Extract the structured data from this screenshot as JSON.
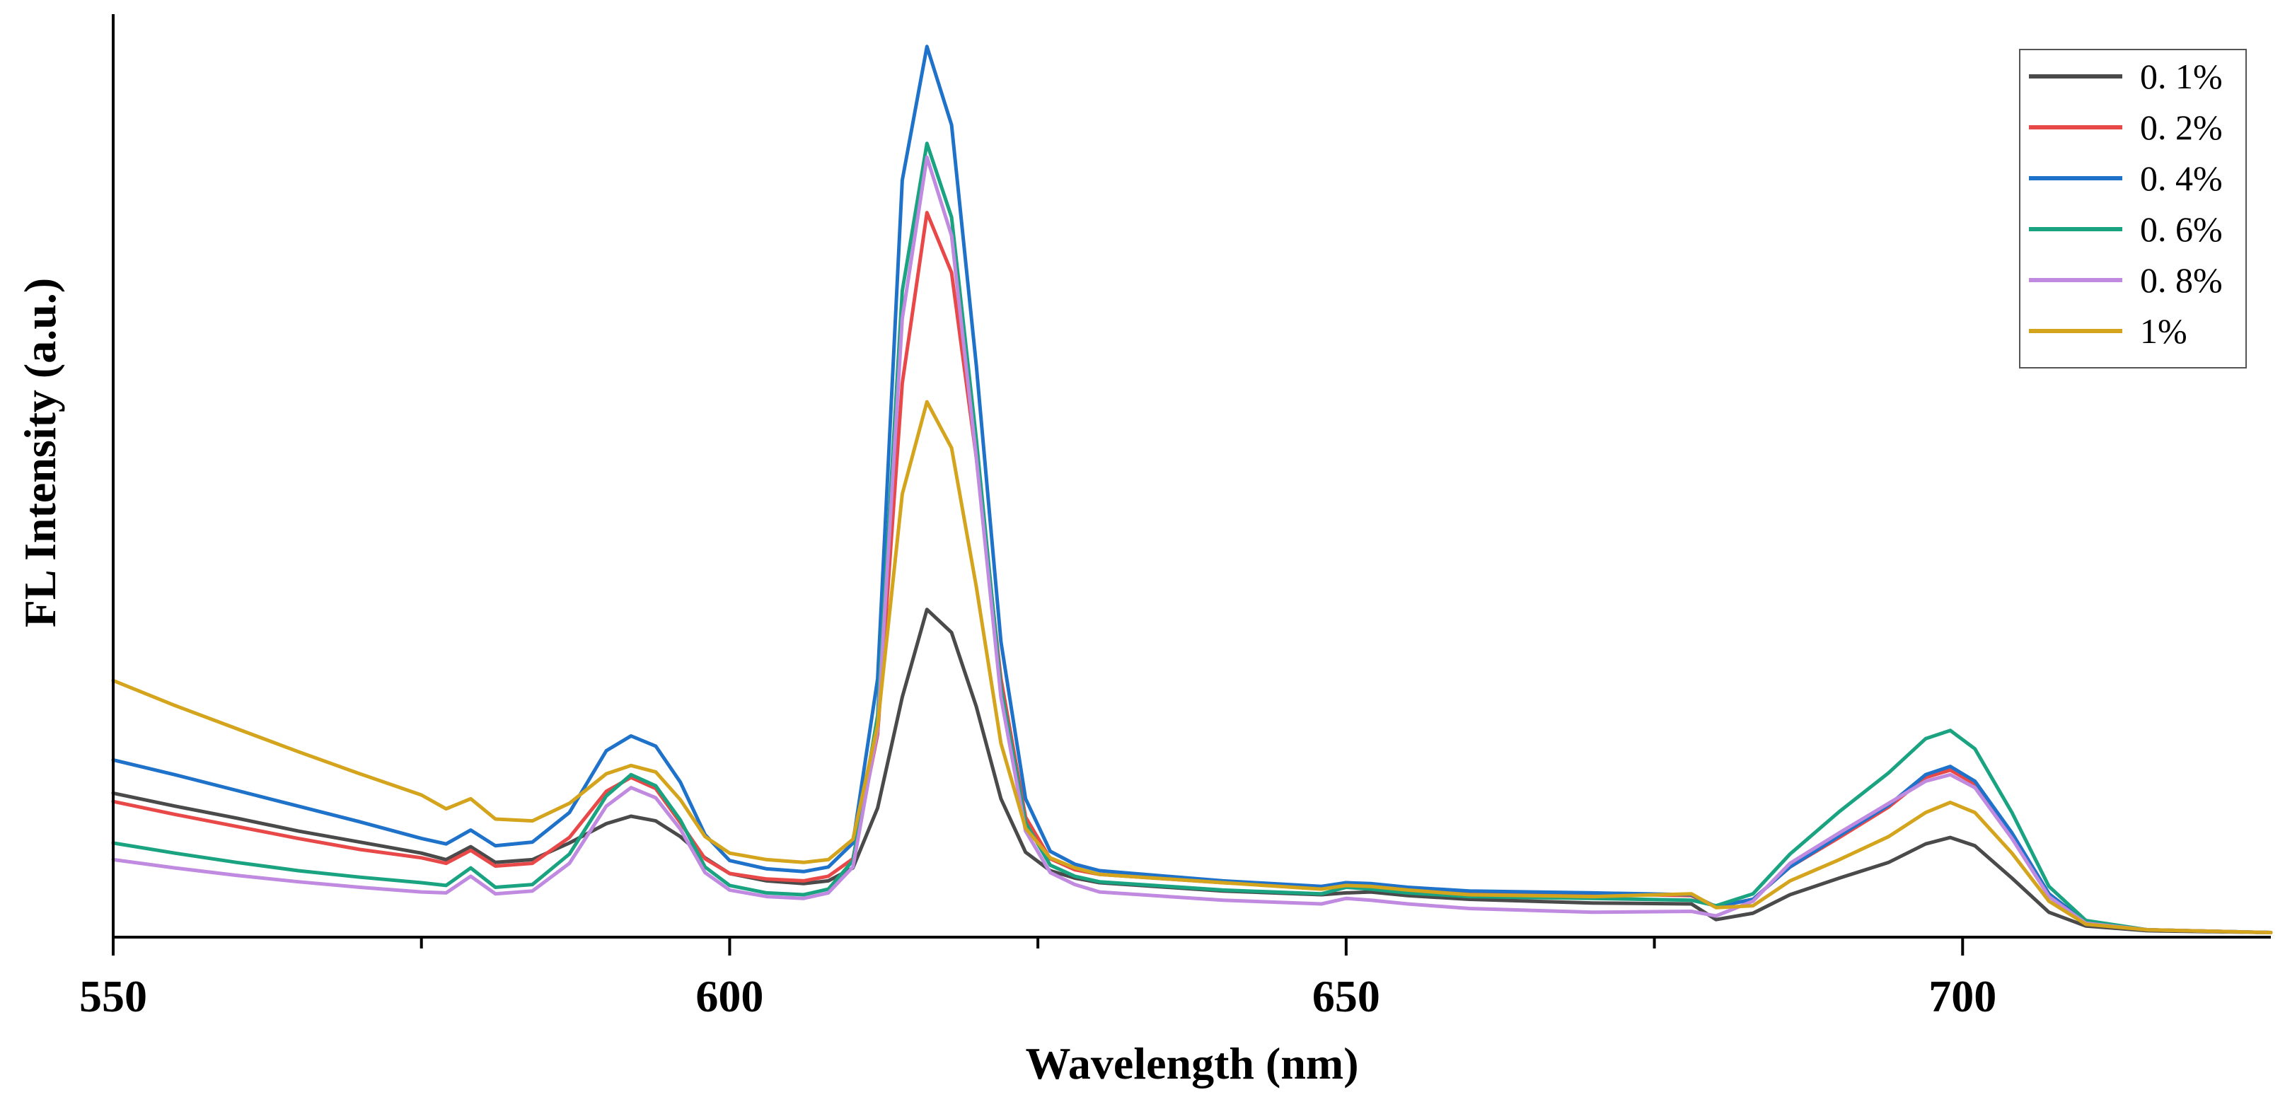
{
  "chart_data": {
    "type": "line",
    "title": "",
    "xlabel": "Wavelength (nm)",
    "ylabel": "FL Intensity (a.u.)",
    "xlim": [
      550,
      725
    ],
    "ylim": [
      0,
      100
    ],
    "xticks": [
      550,
      600,
      650,
      700
    ],
    "xtick_labels": [
      "550",
      "600",
      "650",
      "700"
    ],
    "minor_xticks": [
      575,
      625,
      675
    ],
    "grid": false,
    "legend_position": "top-right",
    "series": [
      {
        "name": "0. 1%",
        "color": "#4a4a4a",
        "points": [
          [
            550,
            15.6
          ],
          [
            555,
            14.2
          ],
          [
            560,
            12.9
          ],
          [
            565,
            11.5
          ],
          [
            570,
            10.3
          ],
          [
            575,
            9.1
          ],
          [
            577,
            8.4
          ],
          [
            579,
            9.8
          ],
          [
            581,
            8.1
          ],
          [
            584,
            8.4
          ],
          [
            587,
            10.2
          ],
          [
            590,
            12.3
          ],
          [
            592,
            13.1
          ],
          [
            594,
            12.6
          ],
          [
            596,
            10.9
          ],
          [
            598,
            8.6
          ],
          [
            600,
            6.9
          ],
          [
            603,
            6.1
          ],
          [
            606,
            5.8
          ],
          [
            608,
            6.1
          ],
          [
            610,
            7.5
          ],
          [
            612,
            14
          ],
          [
            614,
            26
          ],
          [
            616,
            35.5
          ],
          [
            618,
            33
          ],
          [
            620,
            25
          ],
          [
            622,
            15
          ],
          [
            624,
            9.2
          ],
          [
            626,
            7.2
          ],
          [
            628,
            6.4
          ],
          [
            630,
            5.9
          ],
          [
            640,
            5
          ],
          [
            648,
            4.6
          ],
          [
            650,
            4.8
          ],
          [
            652,
            4.9
          ],
          [
            655,
            4.5
          ],
          [
            660,
            4.1
          ],
          [
            670,
            3.7
          ],
          [
            678,
            3.6
          ],
          [
            680,
            1.9
          ],
          [
            683,
            2.6
          ],
          [
            686,
            4.6
          ],
          [
            690,
            6.4
          ],
          [
            694,
            8.1
          ],
          [
            697,
            10.1
          ],
          [
            699,
            10.8
          ],
          [
            701,
            9.9
          ],
          [
            704,
            6.4
          ],
          [
            707,
            2.7
          ],
          [
            710,
            1.2
          ],
          [
            715,
            0.7
          ],
          [
            725,
            0.5
          ]
        ]
      },
      {
        "name": "0. 2%",
        "color": "#e94848",
        "points": [
          [
            550,
            14.7
          ],
          [
            555,
            13.3
          ],
          [
            560,
            12
          ],
          [
            565,
            10.7
          ],
          [
            570,
            9.5
          ],
          [
            575,
            8.6
          ],
          [
            577,
            8
          ],
          [
            579,
            9.4
          ],
          [
            581,
            7.7
          ],
          [
            584,
            8
          ],
          [
            587,
            10.8
          ],
          [
            590,
            15.8
          ],
          [
            592,
            17.3
          ],
          [
            594,
            16.1
          ],
          [
            596,
            12.4
          ],
          [
            598,
            8.5
          ],
          [
            600,
            6.9
          ],
          [
            603,
            6.3
          ],
          [
            606,
            6.1
          ],
          [
            608,
            6.6
          ],
          [
            610,
            8.5
          ],
          [
            612,
            22
          ],
          [
            614,
            60
          ],
          [
            616,
            78.5
          ],
          [
            618,
            72
          ],
          [
            620,
            52
          ],
          [
            622,
            28
          ],
          [
            624,
            13
          ],
          [
            626,
            8.5
          ],
          [
            628,
            7.3
          ],
          [
            630,
            6.8
          ],
          [
            640,
            5.9
          ],
          [
            648,
            5.4
          ],
          [
            650,
            5.9
          ],
          [
            652,
            5.7
          ],
          [
            655,
            5.3
          ],
          [
            660,
            4.9
          ],
          [
            670,
            4.7
          ],
          [
            678,
            4.5
          ],
          [
            680,
            3.3
          ],
          [
            683,
            4.1
          ],
          [
            686,
            7.6
          ],
          [
            690,
            10.8
          ],
          [
            694,
            14.1
          ],
          [
            697,
            17.3
          ],
          [
            699,
            18.1
          ],
          [
            701,
            16.6
          ],
          [
            704,
            11.2
          ],
          [
            707,
            4.7
          ],
          [
            710,
            1.6
          ],
          [
            715,
            0.8
          ],
          [
            725,
            0.5
          ]
        ]
      },
      {
        "name": "0. 4%",
        "color": "#1f72c9",
        "points": [
          [
            550,
            19.2
          ],
          [
            555,
            17.6
          ],
          [
            560,
            15.9
          ],
          [
            565,
            14.2
          ],
          [
            570,
            12.5
          ],
          [
            575,
            10.7
          ],
          [
            577,
            10.1
          ],
          [
            579,
            11.6
          ],
          [
            581,
            9.9
          ],
          [
            584,
            10.3
          ],
          [
            587,
            13.5
          ],
          [
            590,
            20.2
          ],
          [
            592,
            21.8
          ],
          [
            594,
            20.7
          ],
          [
            596,
            16.8
          ],
          [
            598,
            11.1
          ],
          [
            600,
            8.3
          ],
          [
            603,
            7.4
          ],
          [
            606,
            7.1
          ],
          [
            608,
            7.6
          ],
          [
            610,
            10.2
          ],
          [
            612,
            28
          ],
          [
            614,
            82
          ],
          [
            616,
            96.5
          ],
          [
            618,
            88
          ],
          [
            620,
            62
          ],
          [
            622,
            32
          ],
          [
            624,
            15
          ],
          [
            626,
            9.3
          ],
          [
            628,
            7.9
          ],
          [
            630,
            7.2
          ],
          [
            640,
            6.1
          ],
          [
            648,
            5.5
          ],
          [
            650,
            5.9
          ],
          [
            652,
            5.8
          ],
          [
            655,
            5.4
          ],
          [
            660,
            5
          ],
          [
            670,
            4.8
          ],
          [
            678,
            4.6
          ],
          [
            680,
            3.3
          ],
          [
            683,
            4.1
          ],
          [
            686,
            7.6
          ],
          [
            690,
            11
          ],
          [
            694,
            14.3
          ],
          [
            697,
            17.6
          ],
          [
            699,
            18.5
          ],
          [
            701,
            16.9
          ],
          [
            704,
            11.3
          ],
          [
            707,
            4.7
          ],
          [
            710,
            1.6
          ],
          [
            715,
            0.8
          ],
          [
            725,
            0.5
          ]
        ]
      },
      {
        "name": "0. 6%",
        "color": "#1aa381",
        "points": [
          [
            550,
            10.2
          ],
          [
            555,
            9.1
          ],
          [
            560,
            8.1
          ],
          [
            565,
            7.2
          ],
          [
            570,
            6.5
          ],
          [
            575,
            5.9
          ],
          [
            577,
            5.6
          ],
          [
            579,
            7.5
          ],
          [
            581,
            5.4
          ],
          [
            584,
            5.7
          ],
          [
            587,
            9
          ],
          [
            590,
            15.3
          ],
          [
            592,
            17.6
          ],
          [
            594,
            16.4
          ],
          [
            596,
            12.7
          ],
          [
            598,
            7.6
          ],
          [
            600,
            5.6
          ],
          [
            603,
            4.8
          ],
          [
            606,
            4.6
          ],
          [
            608,
            5.2
          ],
          [
            610,
            8.3
          ],
          [
            612,
            24
          ],
          [
            614,
            70
          ],
          [
            616,
            86
          ],
          [
            618,
            78
          ],
          [
            620,
            54
          ],
          [
            622,
            27
          ],
          [
            624,
            12.4
          ],
          [
            626,
            7.8
          ],
          [
            628,
            6.6
          ],
          [
            630,
            6
          ],
          [
            640,
            5.1
          ],
          [
            648,
            4.7
          ],
          [
            650,
            5.4
          ],
          [
            652,
            5.2
          ],
          [
            655,
            4.8
          ],
          [
            660,
            4.4
          ],
          [
            670,
            4.2
          ],
          [
            678,
            4
          ],
          [
            680,
            3.4
          ],
          [
            683,
            4.7
          ],
          [
            686,
            9
          ],
          [
            690,
            13.6
          ],
          [
            694,
            17.8
          ],
          [
            697,
            21.5
          ],
          [
            699,
            22.4
          ],
          [
            701,
            20.4
          ],
          [
            704,
            13.5
          ],
          [
            707,
            5.5
          ],
          [
            710,
            1.8
          ],
          [
            715,
            0.8
          ],
          [
            725,
            0.5
          ]
        ]
      },
      {
        "name": "0. 8%",
        "color": "#bf8ae0",
        "points": [
          [
            550,
            8.4
          ],
          [
            555,
            7.5
          ],
          [
            560,
            6.7
          ],
          [
            565,
            6
          ],
          [
            570,
            5.4
          ],
          [
            575,
            4.9
          ],
          [
            577,
            4.8
          ],
          [
            579,
            6.6
          ],
          [
            581,
            4.7
          ],
          [
            584,
            5
          ],
          [
            587,
            8
          ],
          [
            590,
            14.2
          ],
          [
            592,
            16.2
          ],
          [
            594,
            15.1
          ],
          [
            596,
            11.7
          ],
          [
            598,
            7
          ],
          [
            600,
            5.1
          ],
          [
            603,
            4.4
          ],
          [
            606,
            4.2
          ],
          [
            608,
            4.8
          ],
          [
            610,
            7.6
          ],
          [
            612,
            22.5
          ],
          [
            614,
            67
          ],
          [
            616,
            84.5
          ],
          [
            618,
            76
          ],
          [
            620,
            52
          ],
          [
            622,
            26
          ],
          [
            624,
            11.5
          ],
          [
            626,
            7
          ],
          [
            628,
            5.7
          ],
          [
            630,
            4.9
          ],
          [
            640,
            4
          ],
          [
            648,
            3.6
          ],
          [
            650,
            4.2
          ],
          [
            652,
            4
          ],
          [
            655,
            3.6
          ],
          [
            660,
            3.1
          ],
          [
            670,
            2.7
          ],
          [
            678,
            2.8
          ],
          [
            680,
            2.3
          ],
          [
            683,
            3.9
          ],
          [
            686,
            8
          ],
          [
            690,
            11.3
          ],
          [
            694,
            14.5
          ],
          [
            697,
            16.9
          ],
          [
            699,
            17.6
          ],
          [
            701,
            16.2
          ],
          [
            704,
            10.7
          ],
          [
            707,
            4.4
          ],
          [
            710,
            1.5
          ],
          [
            715,
            0.8
          ],
          [
            725,
            0.5
          ]
        ]
      },
      {
        "name": "1%",
        "color": "#d4a41c",
        "points": [
          [
            550,
            27.8
          ],
          [
            555,
            25.1
          ],
          [
            560,
            22.6
          ],
          [
            565,
            20.1
          ],
          [
            570,
            17.7
          ],
          [
            575,
            15.4
          ],
          [
            577,
            13.9
          ],
          [
            579,
            15
          ],
          [
            581,
            12.8
          ],
          [
            584,
            12.6
          ],
          [
            587,
            14.5
          ],
          [
            590,
            17.7
          ],
          [
            592,
            18.6
          ],
          [
            594,
            17.9
          ],
          [
            596,
            14.9
          ],
          [
            598,
            10.9
          ],
          [
            600,
            9.1
          ],
          [
            603,
            8.4
          ],
          [
            606,
            8.1
          ],
          [
            608,
            8.4
          ],
          [
            610,
            10.6
          ],
          [
            612,
            23
          ],
          [
            614,
            48
          ],
          [
            616,
            58
          ],
          [
            618,
            53
          ],
          [
            620,
            38
          ],
          [
            622,
            21
          ],
          [
            624,
            11.8
          ],
          [
            626,
            8.6
          ],
          [
            628,
            7.5
          ],
          [
            630,
            6.8
          ],
          [
            640,
            5.9
          ],
          [
            648,
            5.2
          ],
          [
            650,
            5.6
          ],
          [
            652,
            5.5
          ],
          [
            655,
            5.1
          ],
          [
            660,
            4.6
          ],
          [
            670,
            4.4
          ],
          [
            678,
            4.7
          ],
          [
            680,
            3.2
          ],
          [
            683,
            3.4
          ],
          [
            686,
            6.1
          ],
          [
            690,
            8.4
          ],
          [
            694,
            10.9
          ],
          [
            697,
            13.5
          ],
          [
            699,
            14.6
          ],
          [
            701,
            13.5
          ],
          [
            704,
            9.1
          ],
          [
            707,
            3.9
          ],
          [
            710,
            1.4
          ],
          [
            715,
            0.8
          ],
          [
            725,
            0.5
          ]
        ]
      }
    ]
  }
}
